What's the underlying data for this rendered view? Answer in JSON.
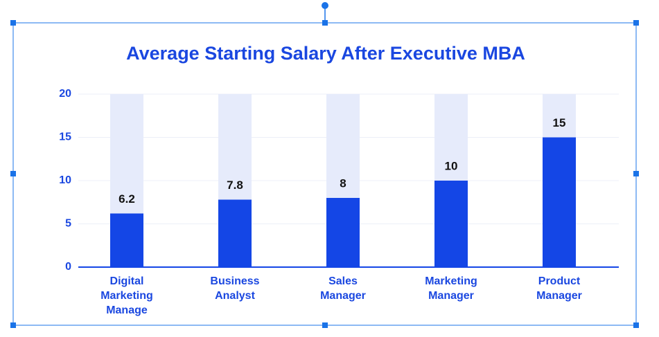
{
  "chart_data": {
    "type": "bar",
    "title": "Average Starting Salary After Executive MBA",
    "categories": [
      "Digital Marketing Manage",
      "Business Analyst",
      "Sales Manager",
      "Marketing Manager",
      "Product Manager"
    ],
    "values": [
      6.2,
      7.8,
      8,
      10,
      15
    ],
    "color": "#1446e6",
    "ylim": [
      0,
      20
    ],
    "yticks": [
      0,
      5,
      10,
      15,
      20
    ],
    "grid": true
  }
}
